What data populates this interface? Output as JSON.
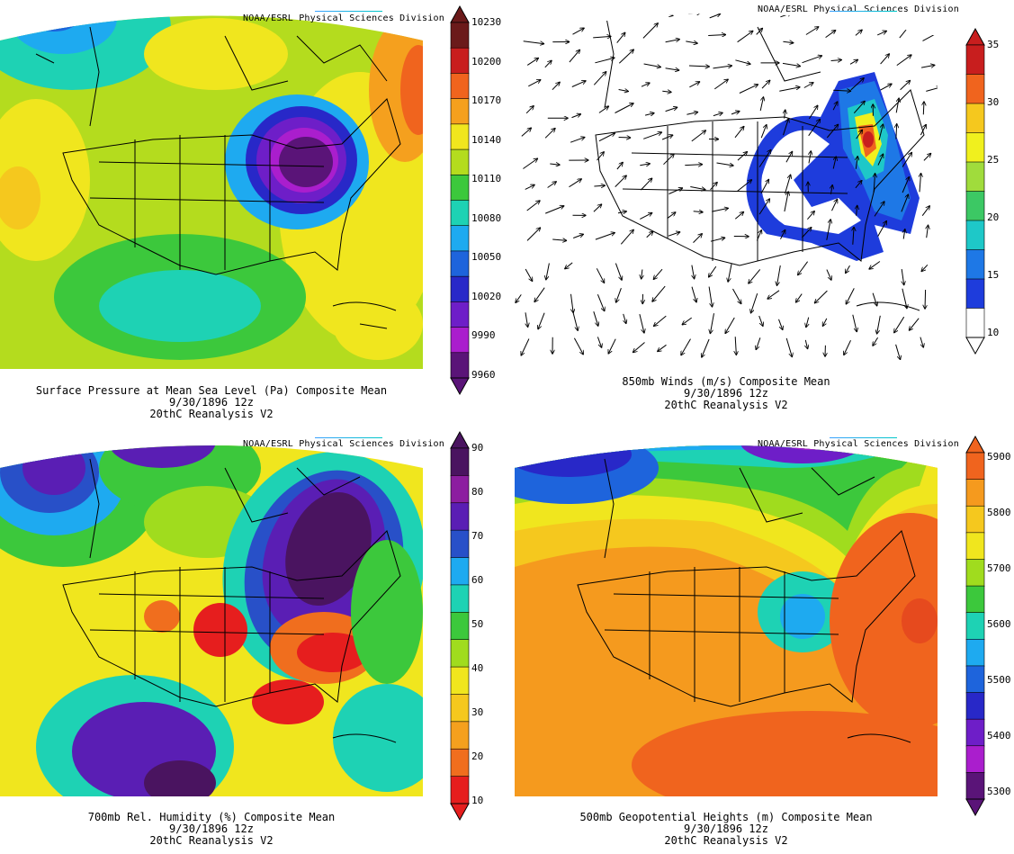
{
  "credit": "NOAA/ESRL Physical Sciences Division",
  "panels": [
    {
      "id": "slp",
      "title": "Surface Pressure at Mean Sea Level (Pa)   Composite Mean",
      "date": "9/30/1896 12z",
      "source": "20thC Reanalysis V2",
      "colorbar": {
        "labels": [
          "10230",
          "10200",
          "10170",
          "10140",
          "10110",
          "10080",
          "10050",
          "10020",
          "9990",
          "9960"
        ],
        "colors": [
          "#6b1a1a",
          "#c81e1e",
          "#f0641e",
          "#f5a01e",
          "#f0e61e",
          "#b4dc1e",
          "#3cc83c",
          "#1ed2b4",
          "#1eaaf0",
          "#1e64dc",
          "#2828c8",
          "#6e1ec8",
          "#aa1ecd",
          "#5a1478"
        ]
      }
    },
    {
      "id": "wind",
      "title": "850mb Winds (m/s)   Composite Mean",
      "date": "9/30/1896 12z",
      "source": "20thC Reanalysis V2",
      "colorbar": {
        "labels": [
          "35",
          "30",
          "25",
          "20",
          "15",
          "10"
        ],
        "colors": [
          "#c81e1e",
          "#f0641e",
          "#f5c81e",
          "#f0f01e",
          "#a0dc3c",
          "#3cc864",
          "#1ec8c8",
          "#1e78e6",
          "#1e3cdc",
          "#ffffff"
        ]
      }
    },
    {
      "id": "rh",
      "title": "700mb Rel. Humidity (%)   Composite Mean",
      "date": "9/30/1896 12z",
      "source": "20thC Reanalysis V2",
      "colorbar": {
        "labels": [
          "90",
          "80",
          "70",
          "60",
          "50",
          "40",
          "30",
          "20",
          "10"
        ],
        "colors": [
          "#4a1460",
          "#8c1ea0",
          "#5a1eb4",
          "#2850c8",
          "#1eaaf0",
          "#1ed2b4",
          "#3cc83c",
          "#a0dc1e",
          "#f0e61e",
          "#f5c81e",
          "#f5a01e",
          "#f06e1e",
          "#e61e1e"
        ]
      }
    },
    {
      "id": "z500",
      "title": "500mb Geopotential Heights (m)   Composite Mean",
      "date": "9/30/1896 12z",
      "source": "20thC Reanalysis V2",
      "colorbar": {
        "labels": [
          "5900",
          "5800",
          "5700",
          "5600",
          "5500",
          "5400",
          "5300"
        ],
        "colors": [
          "#f0641e",
          "#f59a1e",
          "#f5c81e",
          "#f0e61e",
          "#a0dc1e",
          "#3cc83c",
          "#1ed2b4",
          "#1eaaf0",
          "#1e64dc",
          "#2828c8",
          "#6e1ec8",
          "#aa1ecd",
          "#5a1478"
        ]
      }
    }
  ]
}
